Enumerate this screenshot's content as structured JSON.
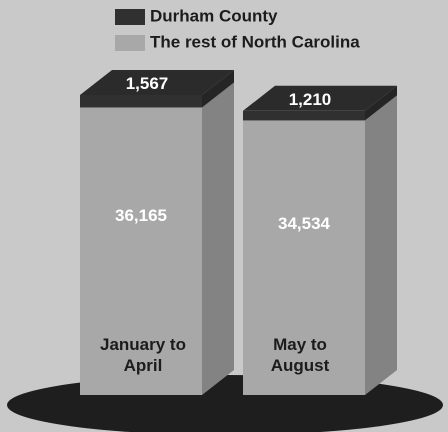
{
  "chart_data": {
    "type": "bar",
    "stacked": true,
    "categories": [
      "January to April",
      "May to August"
    ],
    "series": [
      {
        "name": "Durham County",
        "color": "#303030",
        "values": [
          1567,
          1210
        ],
        "value_labels": [
          "1,567",
          "1,210"
        ]
      },
      {
        "name": "The rest of North Carolina",
        "color": "#a8a8a8",
        "values": [
          36165,
          34534
        ],
        "value_labels": [
          "36,165",
          "34,534"
        ]
      }
    ]
  }
}
